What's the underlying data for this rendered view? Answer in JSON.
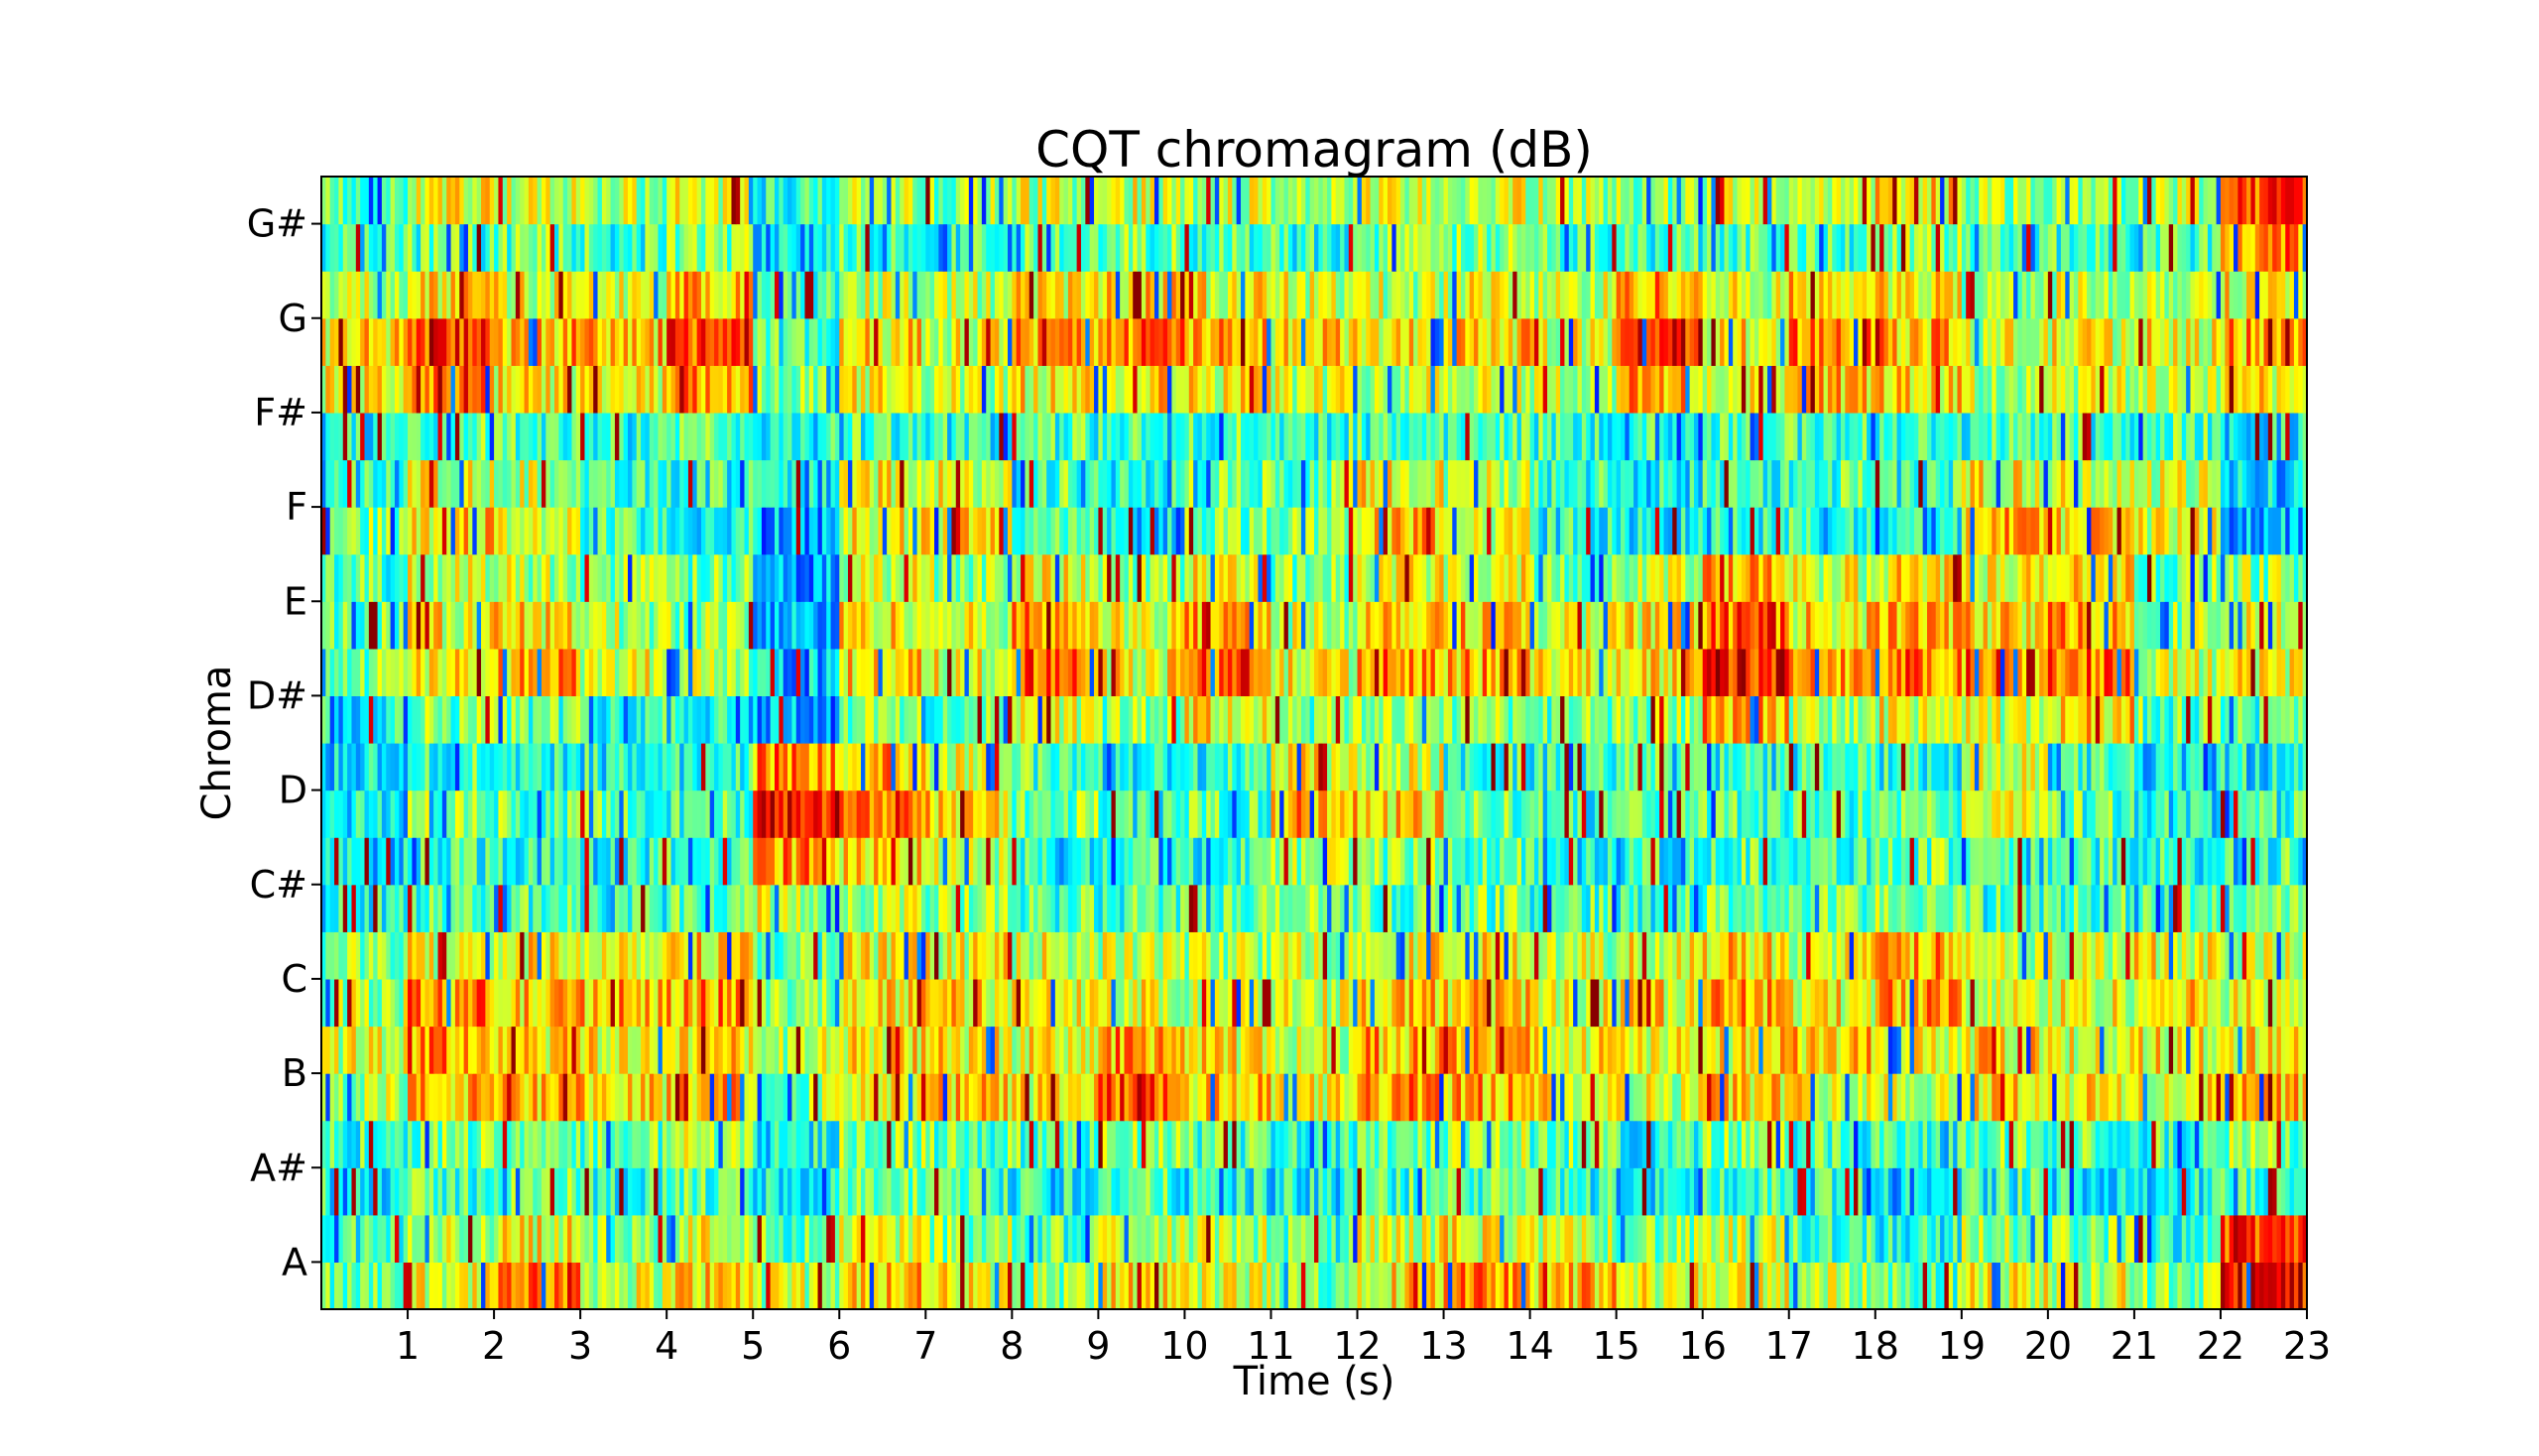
{
  "chart_data": {
    "type": "heatmap",
    "title": "CQT chromagram (dB)",
    "xlabel": "Time (s)",
    "ylabel": "Chroma",
    "xlim": [
      0,
      23
    ],
    "x_ticks": [
      "1",
      "2",
      "3",
      "4",
      "5",
      "6",
      "7",
      "8",
      "9",
      "10",
      "11",
      "12",
      "13",
      "14",
      "15",
      "16",
      "17",
      "18",
      "19",
      "20",
      "21",
      "22",
      "23"
    ],
    "y_ticks": [
      "A",
      "A#",
      "B",
      "C",
      "C#",
      "D",
      "D#",
      "E",
      "F",
      "F#",
      "G",
      "G#"
    ],
    "grid": false,
    "legend": "none",
    "colormap": "jet",
    "bins_per_label": 2,
    "rows": [
      {
        "bin": "A-low",
        "value_levels": [
          0.45,
          0.62,
          0.78,
          0.58,
          0.66,
          0.55,
          0.7,
          0.6,
          0.52,
          0.64,
          0.58,
          0.5,
          0.66,
          0.72,
          0.68,
          0.6,
          0.62,
          0.55,
          0.48,
          0.6,
          0.58,
          0.5,
          0.88,
          0.8
        ]
      },
      {
        "bin": "A-high",
        "value_levels": [
          0.42,
          0.55,
          0.62,
          0.5,
          0.6,
          0.48,
          0.6,
          0.52,
          0.46,
          0.58,
          0.55,
          0.45,
          0.58,
          0.62,
          0.55,
          0.5,
          0.55,
          0.45,
          0.42,
          0.52,
          0.5,
          0.44,
          0.82,
          0.7
        ]
      },
      {
        "bin": "A#-low",
        "value_levels": [
          0.4,
          0.45,
          0.48,
          0.42,
          0.45,
          0.38,
          0.46,
          0.42,
          0.4,
          0.44,
          0.4,
          0.38,
          0.44,
          0.46,
          0.42,
          0.36,
          0.44,
          0.4,
          0.34,
          0.42,
          0.4,
          0.38,
          0.45,
          0.44
        ]
      },
      {
        "bin": "A#-high",
        "value_levels": [
          0.44,
          0.5,
          0.52,
          0.48,
          0.55,
          0.4,
          0.52,
          0.48,
          0.46,
          0.5,
          0.46,
          0.44,
          0.5,
          0.52,
          0.48,
          0.42,
          0.5,
          0.44,
          0.4,
          0.48,
          0.46,
          0.44,
          0.5,
          0.48
        ]
      },
      {
        "bin": "B-low",
        "value_levels": [
          0.55,
          0.68,
          0.66,
          0.64,
          0.7,
          0.52,
          0.6,
          0.66,
          0.62,
          0.78,
          0.66,
          0.6,
          0.72,
          0.7,
          0.64,
          0.58,
          0.66,
          0.62,
          0.58,
          0.66,
          0.62,
          0.6,
          0.68,
          0.7
        ]
      },
      {
        "bin": "B-high",
        "value_levels": [
          0.58,
          0.72,
          0.64,
          0.62,
          0.66,
          0.55,
          0.62,
          0.64,
          0.6,
          0.72,
          0.62,
          0.58,
          0.7,
          0.68,
          0.62,
          0.6,
          0.64,
          0.66,
          0.6,
          0.64,
          0.6,
          0.62,
          0.66,
          0.68
        ]
      },
      {
        "bin": "C-low",
        "value_levels": [
          0.55,
          0.74,
          0.66,
          0.7,
          0.72,
          0.5,
          0.66,
          0.64,
          0.6,
          0.6,
          0.58,
          0.6,
          0.68,
          0.66,
          0.6,
          0.64,
          0.7,
          0.62,
          0.72,
          0.58,
          0.6,
          0.64,
          0.6,
          0.72
        ]
      },
      {
        "bin": "C-high",
        "value_levels": [
          0.5,
          0.6,
          0.62,
          0.64,
          0.66,
          0.48,
          0.6,
          0.6,
          0.58,
          0.56,
          0.55,
          0.56,
          0.64,
          0.62,
          0.56,
          0.6,
          0.66,
          0.58,
          0.7,
          0.56,
          0.58,
          0.62,
          0.58,
          0.68
        ]
      },
      {
        "bin": "C#-low",
        "value_levels": [
          0.4,
          0.46,
          0.45,
          0.44,
          0.48,
          0.58,
          0.55,
          0.5,
          0.45,
          0.46,
          0.46,
          0.5,
          0.48,
          0.48,
          0.46,
          0.44,
          0.48,
          0.46,
          0.52,
          0.44,
          0.46,
          0.44,
          0.48,
          0.46
        ]
      },
      {
        "bin": "C#-high",
        "value_levels": [
          0.36,
          0.44,
          0.42,
          0.4,
          0.44,
          0.72,
          0.64,
          0.56,
          0.42,
          0.44,
          0.42,
          0.54,
          0.5,
          0.46,
          0.44,
          0.42,
          0.46,
          0.44,
          0.48,
          0.4,
          0.42,
          0.4,
          0.44,
          0.42
        ]
      },
      {
        "bin": "D-low",
        "value_levels": [
          0.38,
          0.5,
          0.48,
          0.46,
          0.45,
          0.86,
          0.78,
          0.66,
          0.5,
          0.42,
          0.46,
          0.7,
          0.64,
          0.48,
          0.42,
          0.5,
          0.44,
          0.46,
          0.44,
          0.62,
          0.46,
          0.4,
          0.42,
          0.38
        ]
      },
      {
        "bin": "D-high",
        "value_levels": [
          0.36,
          0.44,
          0.42,
          0.4,
          0.42,
          0.74,
          0.7,
          0.6,
          0.46,
          0.38,
          0.42,
          0.62,
          0.58,
          0.44,
          0.4,
          0.46,
          0.4,
          0.42,
          0.4,
          0.56,
          0.42,
          0.36,
          0.38,
          0.34
        ]
      },
      {
        "bin": "D#-low",
        "value_levels": [
          0.4,
          0.5,
          0.48,
          0.44,
          0.42,
          0.3,
          0.5,
          0.46,
          0.58,
          0.5,
          0.62,
          0.48,
          0.54,
          0.52,
          0.48,
          0.5,
          0.72,
          0.52,
          0.6,
          0.56,
          0.66,
          0.48,
          0.44,
          0.46
        ]
      },
      {
        "bin": "D#-high",
        "value_levels": [
          0.5,
          0.62,
          0.7,
          0.58,
          0.55,
          0.32,
          0.66,
          0.6,
          0.8,
          0.62,
          0.8,
          0.6,
          0.74,
          0.7,
          0.62,
          0.66,
          0.86,
          0.7,
          0.76,
          0.7,
          0.78,
          0.58,
          0.6,
          0.6
        ]
      },
      {
        "bin": "E-low",
        "value_levels": [
          0.48,
          0.62,
          0.64,
          0.54,
          0.52,
          0.3,
          0.64,
          0.58,
          0.72,
          0.58,
          0.72,
          0.56,
          0.7,
          0.68,
          0.58,
          0.62,
          0.78,
          0.64,
          0.7,
          0.66,
          0.72,
          0.54,
          0.58,
          0.56
        ]
      },
      {
        "bin": "E-high",
        "value_levels": [
          0.46,
          0.58,
          0.56,
          0.5,
          0.48,
          0.28,
          0.58,
          0.54,
          0.62,
          0.52,
          0.62,
          0.5,
          0.62,
          0.6,
          0.52,
          0.56,
          0.68,
          0.58,
          0.64,
          0.6,
          0.64,
          0.5,
          0.52,
          0.5
        ]
      },
      {
        "bin": "F-low",
        "value_levels": [
          0.5,
          0.66,
          0.6,
          0.42,
          0.4,
          0.28,
          0.62,
          0.64,
          0.44,
          0.36,
          0.5,
          0.52,
          0.68,
          0.6,
          0.4,
          0.36,
          0.42,
          0.44,
          0.4,
          0.7,
          0.66,
          0.6,
          0.3,
          0.28
        ]
      },
      {
        "bin": "F-high",
        "value_levels": [
          0.48,
          0.6,
          0.56,
          0.44,
          0.42,
          0.34,
          0.6,
          0.58,
          0.46,
          0.4,
          0.48,
          0.5,
          0.62,
          0.56,
          0.42,
          0.38,
          0.44,
          0.46,
          0.42,
          0.62,
          0.58,
          0.56,
          0.34,
          0.32
        ]
      },
      {
        "bin": "F#-low",
        "value_levels": [
          0.4,
          0.46,
          0.44,
          0.42,
          0.44,
          0.4,
          0.44,
          0.42,
          0.44,
          0.44,
          0.46,
          0.44,
          0.44,
          0.46,
          0.44,
          0.42,
          0.46,
          0.44,
          0.42,
          0.44,
          0.44,
          0.46,
          0.38,
          0.4
        ]
      },
      {
        "bin": "F#-high",
        "value_levels": [
          0.6,
          0.72,
          0.62,
          0.6,
          0.72,
          0.48,
          0.6,
          0.56,
          0.62,
          0.66,
          0.62,
          0.58,
          0.58,
          0.6,
          0.56,
          0.7,
          0.58,
          0.68,
          0.64,
          0.54,
          0.56,
          0.58,
          0.64,
          0.66
        ]
      },
      {
        "bin": "G-low",
        "value_levels": [
          0.64,
          0.8,
          0.7,
          0.68,
          0.82,
          0.44,
          0.64,
          0.6,
          0.7,
          0.76,
          0.7,
          0.64,
          0.62,
          0.66,
          0.6,
          0.86,
          0.64,
          0.76,
          0.7,
          0.58,
          0.6,
          0.62,
          0.7,
          0.72
        ]
      },
      {
        "bin": "G-high",
        "value_levels": [
          0.56,
          0.66,
          0.6,
          0.58,
          0.7,
          0.44,
          0.58,
          0.56,
          0.62,
          0.66,
          0.62,
          0.58,
          0.56,
          0.6,
          0.56,
          0.72,
          0.58,
          0.66,
          0.62,
          0.54,
          0.56,
          0.58,
          0.62,
          0.64
        ]
      },
      {
        "bin": "G#-low",
        "value_levels": [
          0.42,
          0.46,
          0.48,
          0.44,
          0.5,
          0.34,
          0.46,
          0.44,
          0.46,
          0.48,
          0.46,
          0.44,
          0.48,
          0.5,
          0.46,
          0.44,
          0.48,
          0.46,
          0.52,
          0.46,
          0.44,
          0.46,
          0.74,
          0.62
        ]
      },
      {
        "bin": "G#-high",
        "value_levels": [
          0.5,
          0.6,
          0.56,
          0.54,
          0.58,
          0.4,
          0.54,
          0.52,
          0.56,
          0.58,
          0.56,
          0.54,
          0.56,
          0.58,
          0.54,
          0.52,
          0.56,
          0.54,
          0.66,
          0.54,
          0.52,
          0.54,
          0.82,
          0.7
        ]
      }
    ]
  }
}
